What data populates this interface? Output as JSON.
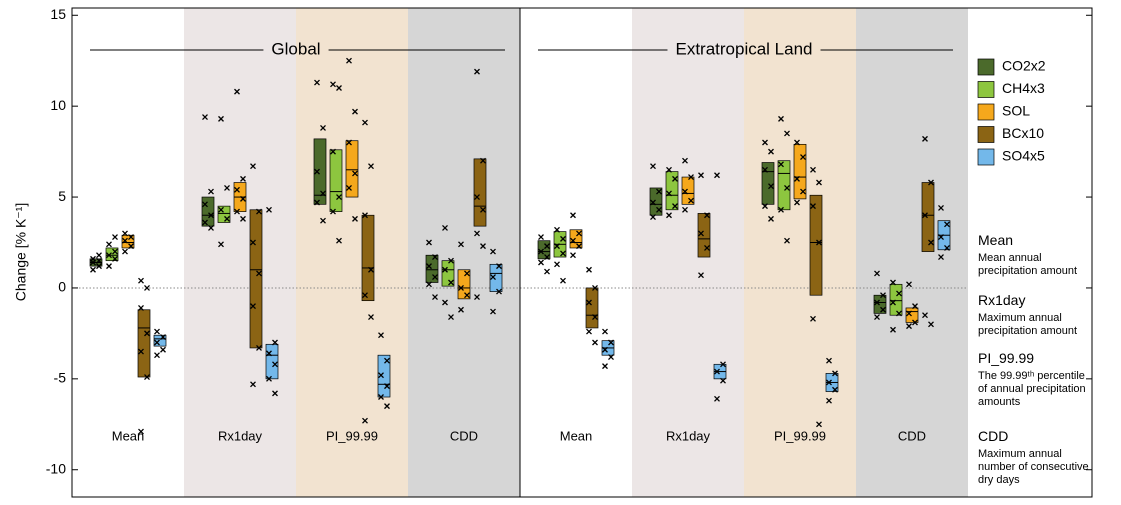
{
  "chart_data": {
    "type": "box",
    "ylabel": "Change [% K⁻¹]",
    "ylim": [
      -11.5,
      15.4
    ],
    "yticks": [
      -10,
      -5,
      0,
      5,
      10,
      15
    ],
    "zero_line": true,
    "series": [
      {
        "name": "CO2x2",
        "color": "#4b6a2b"
      },
      {
        "name": "CH4x3",
        "color": "#8dc63f"
      },
      {
        "name": "SOL",
        "color": "#f5a81c"
      },
      {
        "name": "BCx10",
        "color": "#8b6414"
      },
      {
        "name": "SO4x5",
        "color": "#73b8ea"
      }
    ],
    "panels": [
      {
        "title": "Global",
        "groups": [
          {
            "category": "Mean",
            "band_color": "#ffffff",
            "boxes": [
              {
                "low": 1.2,
                "median": 1.4,
                "high": 1.6,
                "points": [
                  1.0,
                  1.2,
                  1.4,
                  1.5,
                  1.6,
                  1.8
                ]
              },
              {
                "low": 1.5,
                "median": 1.8,
                "high": 2.2,
                "points": [
                  1.2,
                  1.6,
                  1.8,
                  2.0,
                  2.4,
                  2.8
                ]
              },
              {
                "low": 2.2,
                "median": 2.5,
                "high": 2.9,
                "points": [
                  2.0,
                  2.3,
                  2.6,
                  2.8,
                  3.0
                ]
              },
              {
                "low": -4.9,
                "median": -2.2,
                "high": -1.2,
                "points": [
                  -7.9,
                  -4.9,
                  -3.5,
                  -2.5,
                  -1.1,
                  0,
                  0.4
                ]
              },
              {
                "low": -3.2,
                "median": -2.8,
                "high": -2.6,
                "points": [
                  -3.7,
                  -3.4,
                  -3.0,
                  -2.7,
                  -2.4
                ]
              }
            ]
          },
          {
            "category": "Rx1day",
            "band_color": "#ece6e6",
            "boxes": [
              {
                "low": 3.4,
                "median": 4.0,
                "high": 5.0,
                "points": [
                  9.4,
                  5.3,
                  4.6,
                  4.0,
                  3.6,
                  3.3
                ]
              },
              {
                "low": 3.6,
                "median": 4.1,
                "high": 4.5,
                "points": [
                  9.3,
                  5.5,
                  4.3,
                  3.8,
                  2.4
                ]
              },
              {
                "low": 4.2,
                "median": 5.0,
                "high": 5.8,
                "points": [
                  10.8,
                  6.0,
                  5.4,
                  4.9,
                  4.2,
                  3.8
                ]
              },
              {
                "low": -3.3,
                "median": 1.0,
                "high": 4.3,
                "points": [
                  6.7,
                  4.2,
                  2.5,
                  0.8,
                  -1.0,
                  -3.3,
                  -5.3
                ]
              },
              {
                "low": -5.0,
                "median": -3.7,
                "high": -3.1,
                "points": [
                  4.3,
                  -3.0,
                  -3.6,
                  -4.2,
                  -5.0,
                  -5.8
                ]
              }
            ]
          },
          {
            "category": "PI_99.99",
            "band_color": "#f2e3d0",
            "boxes": [
              {
                "low": 4.6,
                "median": 5.1,
                "high": 8.2,
                "points": [
                  11.3,
                  8.8,
                  6.4,
                  5.2,
                  4.7,
                  3.7
                ]
              },
              {
                "low": 4.2,
                "median": 5.3,
                "high": 7.6,
                "points": [
                  11.2,
                  11.0,
                  7.5,
                  5.0,
                  4.2,
                  2.6
                ]
              },
              {
                "low": 5.0,
                "median": 6.5,
                "high": 8.1,
                "points": [
                  12.5,
                  9.7,
                  8.0,
                  6.3,
                  5.5,
                  3.8
                ]
              },
              {
                "low": -0.7,
                "median": 1.1,
                "high": 4.0,
                "points": [
                  9.1,
                  6.7,
                  4.0,
                  1.0,
                  -0.4,
                  -1.6,
                  -7.3
                ]
              },
              {
                "low": -6.0,
                "median": -5.3,
                "high": -3.7,
                "points": [
                  -2.6,
                  -4.0,
                  -4.8,
                  -5.4,
                  -6.0,
                  -6.5
                ]
              }
            ]
          },
          {
            "category": "CDD",
            "band_color": "#d6d6d6",
            "boxes": [
              {
                "low": 0.3,
                "median": 1.0,
                "high": 1.8,
                "points": [
                  2.5,
                  1.7,
                  1.2,
                  0.6,
                  0.2,
                  -0.5
                ]
              },
              {
                "low": 0.1,
                "median": 1.0,
                "high": 1.5,
                "points": [
                  3.3,
                  1.5,
                  1.0,
                  0.3,
                  -0.8,
                  -1.6
                ]
              },
              {
                "low": -0.6,
                "median": 0,
                "high": 1.0,
                "points": [
                  2.4,
                  0.8,
                  0,
                  -0.4,
                  -1.2
                ]
              },
              {
                "low": 3.4,
                "median": 4.5,
                "high": 7.1,
                "points": [
                  11.9,
                  7.0,
                  5.0,
                  4.3,
                  3.0,
                  2.3,
                  -0.5
                ]
              },
              {
                "low": -0.2,
                "median": 0.8,
                "high": 1.3,
                "points": [
                  2.0,
                  1.2,
                  0.6,
                  -0.2,
                  -1.3
                ]
              }
            ]
          }
        ]
      },
      {
        "title": "Extratropical Land",
        "groups": [
          {
            "category": "Mean",
            "band_color": "#ffffff",
            "boxes": [
              {
                "low": 1.6,
                "median": 2.0,
                "high": 2.6,
                "points": [
                  2.8,
                  2.3,
                  2.0,
                  1.7,
                  1.4,
                  0.9
                ]
              },
              {
                "low": 1.7,
                "median": 2.4,
                "high": 3.1,
                "points": [
                  3.2,
                  2.7,
                  2.3,
                  1.9,
                  1.3,
                  0.4
                ]
              },
              {
                "low": 2.2,
                "median": 2.5,
                "high": 3.2,
                "points": [
                  4.0,
                  3.0,
                  2.6,
                  2.3,
                  1.8
                ]
              },
              {
                "low": -2.2,
                "median": -1.5,
                "high": 0,
                "points": [
                  1.0,
                  0,
                  -0.8,
                  -1.6,
                  -2.4,
                  -3.0
                ]
              },
              {
                "low": -3.7,
                "median": -3.3,
                "high": -2.9,
                "points": [
                  -2.4,
                  -3.0,
                  -3.4,
                  -3.8,
                  -4.3
                ]
              }
            ]
          },
          {
            "category": "Rx1day",
            "band_color": "#ece6e6",
            "boxes": [
              {
                "low": 4.0,
                "median": 4.6,
                "high": 5.5,
                "points": [
                  6.7,
                  5.3,
                  4.7,
                  4.3,
                  3.9
                ]
              },
              {
                "low": 4.3,
                "median": 5.1,
                "high": 6.4,
                "points": [
                  6.5,
                  6.0,
                  5.2,
                  4.5,
                  4.0
                ]
              },
              {
                "low": 4.6,
                "median": 5.2,
                "high": 6.1,
                "points": [
                  7.0,
                  6.1,
                  5.3,
                  4.8,
                  4.3
                ]
              },
              {
                "low": 1.7,
                "median": 2.7,
                "high": 4.1,
                "points": [
                  6.2,
                  4.0,
                  3.0,
                  2.2,
                  0.7
                ]
              },
              {
                "low": -5.0,
                "median": -4.6,
                "high": -4.2,
                "points": [
                  6.2,
                  -4.2,
                  -4.6,
                  -5.1,
                  -6.1
                ]
              }
            ]
          },
          {
            "category": "PI_99.99",
            "band_color": "#f2e3d0",
            "boxes": [
              {
                "low": 4.6,
                "median": 6.4,
                "high": 6.9,
                "points": [
                  8.0,
                  7.5,
                  6.5,
                  5.6,
                  4.5,
                  3.8
                ]
              },
              {
                "low": 4.3,
                "median": 6.3,
                "high": 7.0,
                "points": [
                  9.3,
                  8.5,
                  6.8,
                  5.5,
                  4.3,
                  2.6
                ]
              },
              {
                "low": 4.9,
                "median": 6.1,
                "high": 7.9,
                "points": [
                  8.0,
                  7.2,
                  6.0,
                  5.3,
                  4.7
                ]
              },
              {
                "low": -0.4,
                "median": 2.5,
                "high": 5.1,
                "points": [
                  6.5,
                  5.8,
                  4.5,
                  2.5,
                  -1.7,
                  -7.5
                ]
              },
              {
                "low": -5.7,
                "median": -5.2,
                "high": -4.7,
                "points": [
                  -4.0,
                  -4.7,
                  -5.2,
                  -5.6,
                  -6.2
                ]
              }
            ]
          },
          {
            "category": "CDD",
            "band_color": "#d6d6d6",
            "boxes": [
              {
                "low": -1.4,
                "median": -0.8,
                "high": -0.4,
                "points": [
                  0.8,
                  -0.4,
                  -0.8,
                  -1.2,
                  -1.6
                ]
              },
              {
                "low": -1.5,
                "median": -0.7,
                "high": 0.2,
                "points": [
                  0.3,
                  -0.3,
                  -0.8,
                  -1.4,
                  -2.3
                ]
              },
              {
                "low": -1.9,
                "median": -1.3,
                "high": -1.1,
                "points": [
                  0.2,
                  -1.0,
                  -1.4,
                  -1.9,
                  -2.1
                ]
              },
              {
                "low": 2.0,
                "median": 4.0,
                "high": 5.8,
                "points": [
                  8.2,
                  5.8,
                  4.0,
                  2.5,
                  -1.5,
                  -2.0
                ]
              },
              {
                "low": 2.1,
                "median": 2.9,
                "high": 3.7,
                "points": [
                  4.4,
                  3.5,
                  2.8,
                  2.2,
                  1.7
                ]
              }
            ]
          }
        ]
      }
    ],
    "descriptions": [
      {
        "title": "Mean",
        "text": "Mean annual precipitation amount"
      },
      {
        "title": "Rx1day",
        "text": "Maximum annual precipitation amount"
      },
      {
        "title": "PI_99.99",
        "text": "The 99.99ᵗʰ percentile of annual precipitation amounts"
      },
      {
        "title": "CDD",
        "text": "Maximum annual number of consecutive dry days"
      }
    ]
  }
}
